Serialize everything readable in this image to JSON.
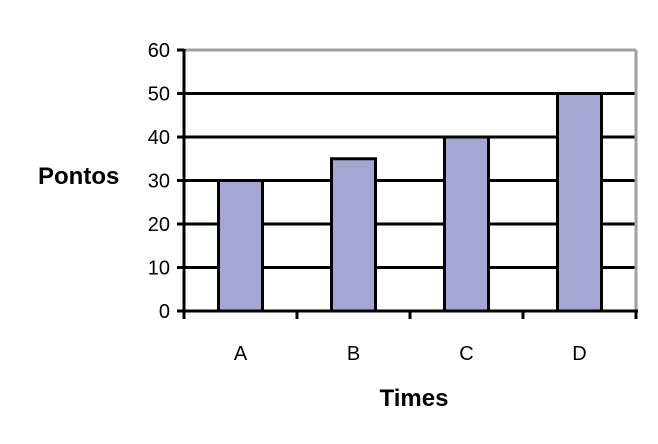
{
  "chart_data": {
    "type": "bar",
    "title": "",
    "xlabel": "Times",
    "ylabel": "Pontos",
    "categories": [
      "A",
      "B",
      "C",
      "D"
    ],
    "values": [
      30,
      35,
      40,
      50
    ],
    "ylim": [
      0,
      60
    ],
    "yticks": [
      0,
      10,
      20,
      30,
      40,
      50,
      60
    ],
    "grid": true,
    "legend": "none",
    "colors": {
      "bar_fill": "#a6a6d3",
      "bar_stroke": "#000000",
      "grid": "#000000",
      "plot_border": "#a0a0a0"
    }
  }
}
